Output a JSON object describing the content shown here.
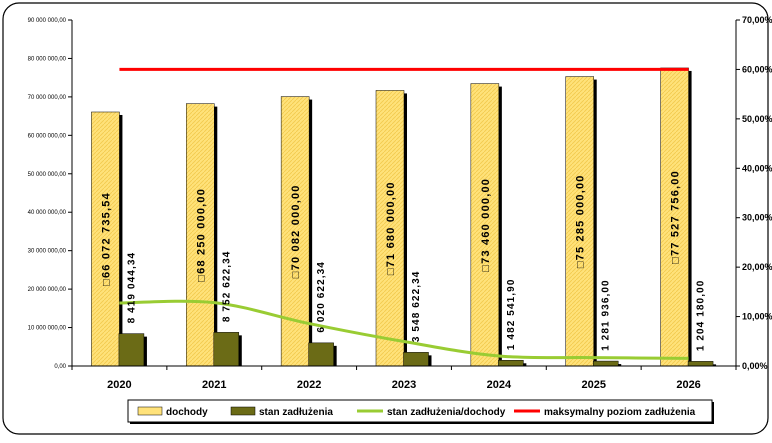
{
  "chart_data": {
    "type": "bar",
    "categories": [
      "2020",
      "2021",
      "2022",
      "2023",
      "2024",
      "2025",
      "2026"
    ],
    "series": [
      {
        "name": "dochody",
        "kind": "bar",
        "axis": "left",
        "values": [
          66072735.54,
          68250000.0,
          70082000.0,
          71680000.0,
          73460000.0,
          75285000.0,
          77527756.0
        ],
        "labels": [
          "□66 072 735,54",
          "□68 250 000,00",
          "□70 082 000,00",
          "□71 680 000,00",
          "□73 460 000,00",
          "□75 285 000,00",
          "□77 527 756,00"
        ],
        "color": "#ffe27a"
      },
      {
        "name": "stan zadłużenia",
        "kind": "bar",
        "axis": "left",
        "values": [
          8419044.34,
          8752622.34,
          6020622.34,
          3548622.34,
          1482541.9,
          1281936.0,
          1204180.0
        ],
        "labels": [
          "8 419 044,34",
          "8 752 622,34",
          "6 020 622,34",
          "3 548 622,34",
          "1 482 541,90",
          "1 281 936,00",
          "1 204 180,00"
        ],
        "color": "#6b6b16"
      },
      {
        "name": "stan zadłużenia/dochody",
        "kind": "line",
        "axis": "right",
        "values": [
          12.74,
          12.82,
          8.59,
          4.95,
          2.02,
          1.7,
          1.55
        ],
        "color": "#99cc33"
      },
      {
        "name": "maksymalny poziom zadłużenia",
        "kind": "line",
        "axis": "right",
        "values": [
          60,
          60,
          60,
          60,
          60,
          60,
          60
        ],
        "color": "#ff0000"
      }
    ],
    "ylim": [
      0,
      90000000
    ],
    "y_ticks": [
      "0,00",
      "10 000 000,00",
      "20 000 000,00",
      "30 000 000,00",
      "40 000 000,00",
      "50 000 000,00",
      "60 000 000,00",
      "70 000 000,00",
      "80 000 000,00",
      "90 000 000,00"
    ],
    "y2lim": [
      0,
      70
    ],
    "y2_ticks": [
      "0,00%",
      "10,00%",
      "20,00%",
      "30,00%",
      "40,00%",
      "50,00%",
      "60,00%",
      "70,00%"
    ],
    "grid": false,
    "legend_placement": "bottom"
  }
}
